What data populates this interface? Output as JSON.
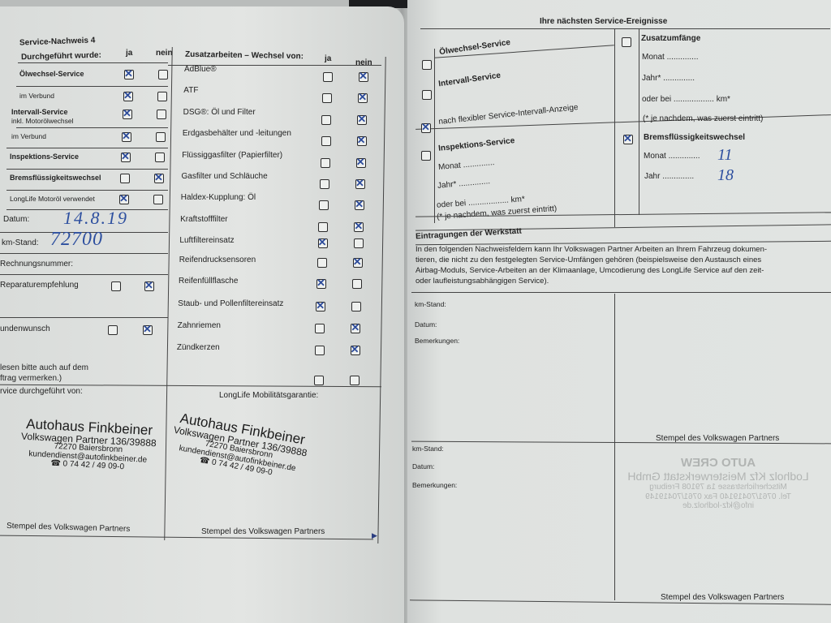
{
  "left_page": {
    "title": "Service-Nachweis 4",
    "col_header_left": "Durchgeführt wurde:",
    "col_header_right": "Zusatzarbeiten – Wechsel von:",
    "ja": "ja",
    "nein": "nein",
    "performed": [
      {
        "label": "Ölwechsel-Service",
        "bold": true,
        "ja": true,
        "nein": false
      },
      {
        "label": "im Verbund",
        "bold": false,
        "ja": true,
        "nein": false
      },
      {
        "label": "Intervall-Service",
        "sub": "inkl. Motorölwechsel",
        "bold": true,
        "ja": true,
        "nein": false
      },
      {
        "label": "im Verbund",
        "bold": false,
        "ja": true,
        "nein": false
      },
      {
        "label": "Inspektions-Service",
        "bold": true,
        "ja": true,
        "nein": false
      },
      {
        "label": "Bremsflüssigkeitswechsel",
        "bold": true,
        "ja": false,
        "nein": true
      },
      {
        "label": "LongLife Motoröl verwendet",
        "bold": false,
        "ja": true,
        "nein": false
      }
    ],
    "datum_label": "Datum:",
    "datum_value": "14.8.19",
    "km_label": "km-Stand:",
    "km_value": "72700",
    "rechnung_label": "Rechnungsnummer:",
    "reparatur": {
      "label": "Reparaturempfehlung",
      "ja": false,
      "nein": true
    },
    "kundenwunsch": {
      "label": "undenwunsch",
      "ja": false,
      "nein": true
    },
    "note_line1": "lesen bitte auch auf dem",
    "note_line2": "ftrag vermerken.)",
    "service_by_label": "rvice durchgeführt von:",
    "mobility_label": "LongLife Mobilitätsgarantie:",
    "stamp_caption": "Stempel des Volkswagen Partners",
    "stamp": {
      "name": "Autohaus Finkbeiner",
      "partner": "Volkswagen Partner 136/39888",
      "city": "72270 Baiersbronn",
      "email": "kundendienst@autofinkbeiner.de",
      "phone": "☎ 0 74 42 / 49 09-0"
    },
    "extra_work": [
      {
        "label": "AdBlue®",
        "ja": false,
        "nein": true
      },
      {
        "label": "ATF",
        "ja": false,
        "nein": true
      },
      {
        "label": "DSG®: Öl und Filter",
        "ja": false,
        "nein": true
      },
      {
        "label": "Erdgasbehälter und -leitungen",
        "ja": false,
        "nein": true
      },
      {
        "label": "Flüssiggasfilter (Papierfilter)",
        "ja": false,
        "nein": true
      },
      {
        "label": "Gasfilter und Schläuche",
        "ja": false,
        "nein": true
      },
      {
        "label": "Haldex-Kupplung: Öl",
        "ja": false,
        "nein": true
      },
      {
        "label": "Kraftstofffilter",
        "ja": false,
        "nein": true
      },
      {
        "label": "Luftfiltereinsatz",
        "ja": true,
        "nein": false
      },
      {
        "label": "Reifendrucksensoren",
        "ja": false,
        "nein": true
      },
      {
        "label": "Reifenfüllflasche",
        "ja": true,
        "nein": false
      },
      {
        "label": "Staub- und Pollenfiltereinsatz",
        "ja": true,
        "nein": false
      },
      {
        "label": "Zahnriemen",
        "ja": false,
        "nein": true
      },
      {
        "label": "Zündkerzen",
        "ja": false,
        "nein": true
      },
      {
        "label": "",
        "ja": false,
        "nein": false
      }
    ]
  },
  "right_page": {
    "title": "Ihre nächsten Service-Ereignisse",
    "oil": {
      "label": "Ölwechsel-Service",
      "checked": false
    },
    "interval": {
      "label": "Intervall-Service",
      "checked": false,
      "flex_label": "nach flexibler Service-Intervall-Anzeige",
      "flex_checked": true
    },
    "inspection": {
      "label": "Inspektions-Service",
      "checked": false,
      "monat": "Monat ..............",
      "jahr": "Jahr* ..............",
      "km": "oder bei .................. km*",
      "note": "(* je nachdem, was zuerst eintritt)"
    },
    "extras": {
      "label": "Zusatzumfänge",
      "checked": false,
      "monat": "Monat ..............",
      "jahr": "Jahr* ..............",
      "km": "oder bei .................. km*",
      "note": "(* je nachdem, was zuerst eintritt)"
    },
    "brake": {
      "label": "Bremsflüssigkeitswechsel",
      "checked": true,
      "monat_label": "Monat ..............",
      "monat_value": "11",
      "jahr_label": "Jahr ..............",
      "jahr_value": "18"
    },
    "workshop_title": "Eintragungen der Werkstatt",
    "workshop_text": [
      "In den folgenden Nachweisfeldern kann Ihr Volkswagen Partner Arbeiten an Ihrem Fahrzeug dokumen-",
      "tieren, die nicht zu den festgelegten Service-Umfängen gehören (beispielsweise den Austausch eines",
      "Airbag-Moduls, Service-Arbeiten an der Klimaanlage, Umcodierung des LongLife Service auf den zeit-",
      "oder laufleistungsabhängigen Service)."
    ],
    "entry_labels": {
      "km": "km-Stand:",
      "datum": "Datum:",
      "bemerkungen": "Bemerkungen:"
    },
    "stamp_caption": "Stempel des Volkswagen Partners",
    "ghost_stamp": {
      "logo": "AUTO CREW",
      "name": "Lodholz Kfz Meisterwerkstatt GmbH",
      "street": "Mitscherlichstrasse 1a 79108 Freiburg",
      "phone": "Tel. 0761/70419140 Fax 0761/70419149",
      "email": "info@kfz-lodholz.de"
    }
  }
}
